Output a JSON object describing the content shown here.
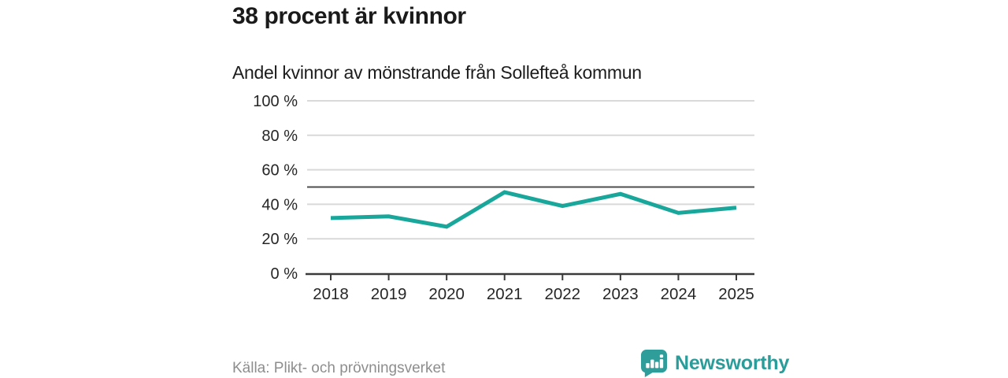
{
  "header": {
    "title": "38 procent är kvinnor",
    "subtitle": "Andel kvinnor av mönstrande från Sollefteå kommun"
  },
  "chart_data": {
    "type": "line",
    "title": "38 procent är kvinnor",
    "subtitle": "Andel kvinnor av mönstrande från Sollefteå kommun",
    "categories": [
      "2018",
      "2019",
      "2020",
      "2021",
      "2022",
      "2023",
      "2024",
      "2025"
    ],
    "series": [
      {
        "name": "Andel kvinnor av mönstrande",
        "values": [
          32,
          33,
          27,
          47,
          39,
          46,
          35,
          38
        ]
      }
    ],
    "xlabel": "",
    "ylabel": "",
    "ylim": [
      0,
      100
    ],
    "y_ticks": [
      0,
      20,
      40,
      60,
      80,
      100
    ],
    "y_tick_suffix": " %",
    "reference_line": 50,
    "grid": true,
    "legend_position": "none"
  },
  "footer": {
    "source": "Källa: Plikt- och prövningsverket",
    "logo_text": "Newsworthy"
  },
  "colors": {
    "line": "#1aa79b",
    "reference_line": "#4d4d4d",
    "gridline": "#d9d9d9",
    "axis": "#3a3a3a",
    "tick_label": "#262626",
    "title_text": "#1a1a1a",
    "source_text": "#8e8e8e",
    "logo_teal": "#2a9c99"
  }
}
